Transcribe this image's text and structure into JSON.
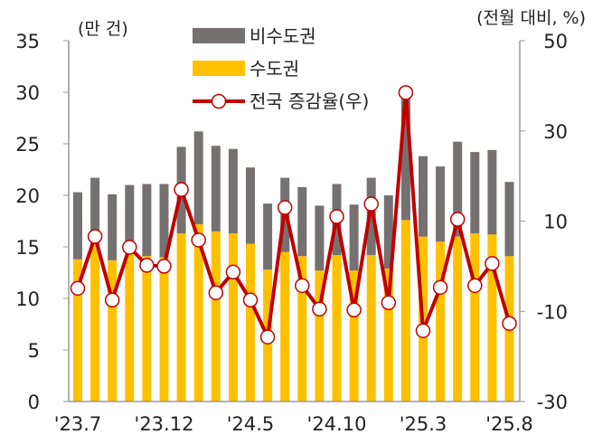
{
  "chart_data": {
    "type": "bar",
    "stacked": true,
    "left_unit": "(만 건)",
    "right_unit": "(전월 대비, %)",
    "ylim_left": [
      0,
      35
    ],
    "ylim_right": [
      -30,
      50
    ],
    "left_ticks": [
      0,
      5,
      10,
      15,
      20,
      25,
      30,
      35
    ],
    "right_ticks": [
      -30,
      -10,
      10,
      30,
      50
    ],
    "x_tick_labels": [
      "'23.7",
      "'23.12",
      "'24.5",
      "'24.10",
      "'25.3",
      "'25.8"
    ],
    "x_tick_every": 5,
    "categories": [
      "23.7",
      "23.8",
      "23.9",
      "23.10",
      "23.11",
      "23.12",
      "24.1",
      "24.2",
      "24.3",
      "24.4",
      "24.5",
      "24.6",
      "24.7",
      "24.8",
      "24.9",
      "24.10",
      "24.11",
      "24.12",
      "25.1",
      "25.2",
      "25.3",
      "25.4",
      "25.5",
      "25.6",
      "25.7",
      "25.8"
    ],
    "series": [
      {
        "name": "수도권",
        "axis": "left",
        "type": "bar",
        "color": "#FFC000",
        "values": [
          13.8,
          15.3,
          13.7,
          14.5,
          14.1,
          14.0,
          16.3,
          17.2,
          16.5,
          16.3,
          15.3,
          12.8,
          14.5,
          14.1,
          12.7,
          14.2,
          12.7,
          14.2,
          12.9,
          17.6,
          16.0,
          15.5,
          16.0,
          16.3,
          16.2,
          14.1
        ]
      },
      {
        "name": "비수도권",
        "axis": "left",
        "type": "bar",
        "color": "#767171",
        "values": [
          6.5,
          6.4,
          6.4,
          6.5,
          7.0,
          7.1,
          8.4,
          9.0,
          8.3,
          8.2,
          7.4,
          6.4,
          7.2,
          6.7,
          6.3,
          6.9,
          6.4,
          7.5,
          7.1,
          12.2,
          7.8,
          7.3,
          9.2,
          7.9,
          8.2,
          7.2
        ]
      },
      {
        "name": "전국 증감율(우)",
        "axis": "right",
        "type": "line",
        "color": "#C00000",
        "values": [
          -4.9,
          6.6,
          -7.5,
          4.2,
          0.2,
          0.0,
          17.0,
          5.8,
          -5.9,
          -1.3,
          -7.5,
          -15.7,
          13.0,
          -4.3,
          -9.5,
          11.0,
          -9.7,
          13.8,
          -8.1,
          38.5,
          -14.3,
          -4.7,
          10.4,
          -4.3,
          0.6,
          -12.7
        ]
      }
    ]
  }
}
